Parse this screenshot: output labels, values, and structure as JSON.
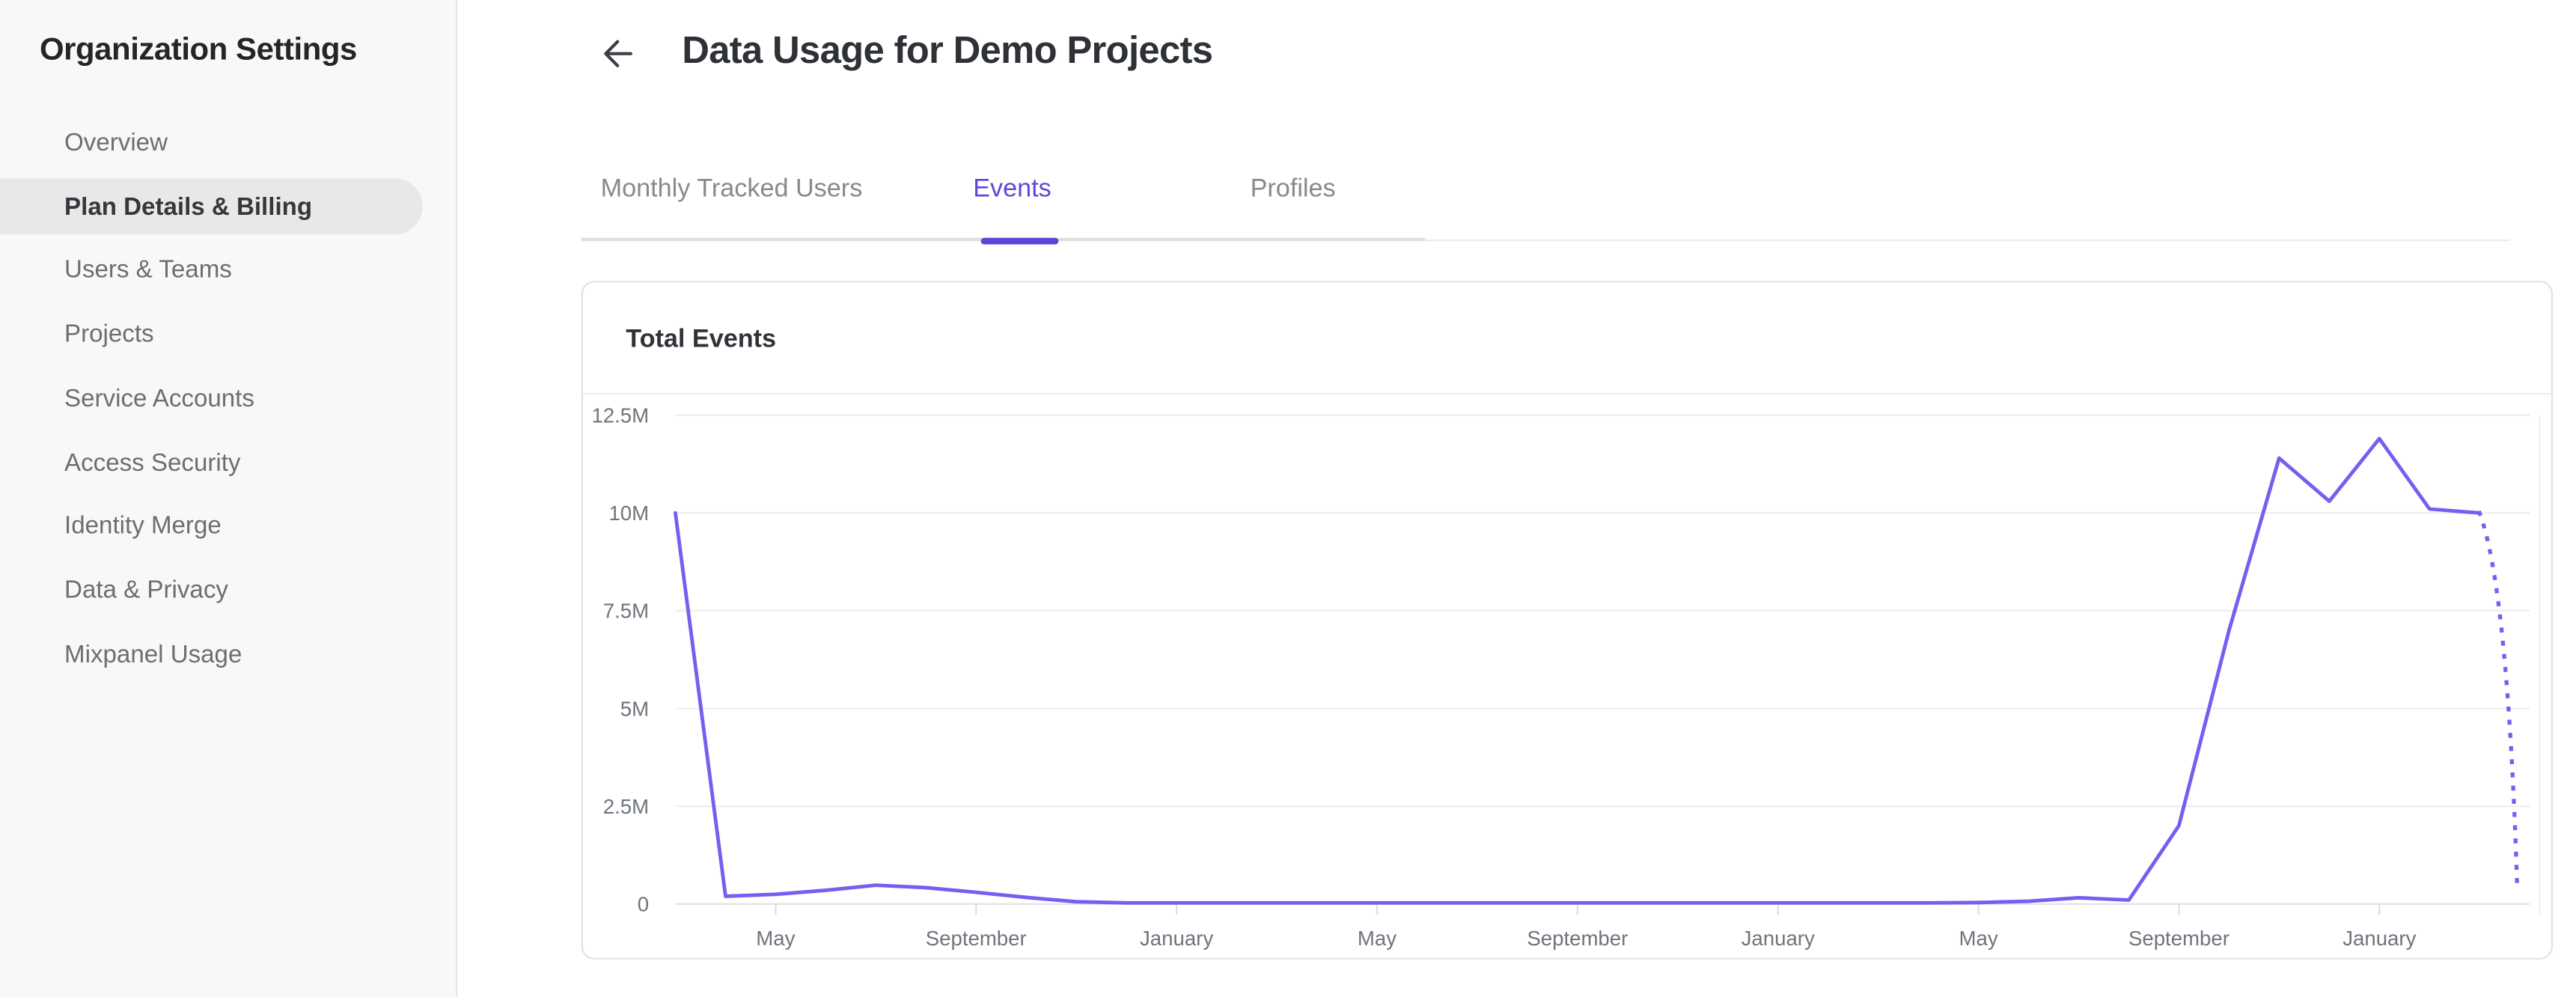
{
  "sidebar": {
    "title": "Organization Settings",
    "items": [
      {
        "label": "Overview",
        "selected": false
      },
      {
        "label": "Plan Details & Billing",
        "selected": true
      },
      {
        "label": "Users & Teams",
        "selected": false
      },
      {
        "label": "Projects",
        "selected": false
      },
      {
        "label": "Service Accounts",
        "selected": false
      },
      {
        "label": "Access Security",
        "selected": false
      },
      {
        "label": "Identity Merge",
        "selected": false
      },
      {
        "label": "Data & Privacy",
        "selected": false
      },
      {
        "label": "Mixpanel Usage",
        "selected": false
      }
    ]
  },
  "header": {
    "title": "Data Usage for Demo Projects",
    "back_icon": "back-arrow-icon"
  },
  "tabs": [
    {
      "label": "Monthly Tracked Users",
      "active": false
    },
    {
      "label": "Events",
      "active": true
    },
    {
      "label": "Profiles",
      "active": false
    }
  ],
  "card": {
    "title": "Total Events"
  },
  "colors": {
    "accent_purple": "#5847d6",
    "line_purple": "#7a5cf0",
    "sidebar_bg": "#f8f8f8",
    "selected_item_bg": "#e8e8e8",
    "gridline": "#ededed",
    "axis_label": "#6f747c"
  },
  "chart_data": {
    "type": "line",
    "title": "Total Events",
    "series_name": "Total Events",
    "ylim_millions": [
      0,
      12.5
    ],
    "y_tick_labels": [
      "0",
      "2.5M",
      "5M",
      "7.5M",
      "10M",
      "12.5M"
    ],
    "x_tick_labels": [
      "May",
      "September",
      "January",
      "May",
      "September",
      "January",
      "May",
      "September",
      "January"
    ],
    "x_tick_indices": [
      2,
      6,
      10,
      14,
      18,
      22,
      26,
      30,
      34
    ],
    "granularity": "monthly",
    "values_millions": [
      10,
      0.2,
      0.25,
      0.35,
      0.48,
      0.42,
      0.3,
      0.17,
      0.06,
      0.03,
      0.03,
      0.03,
      0.03,
      0.03,
      0.03,
      0.03,
      0.03,
      0.03,
      0.03,
      0.03,
      0.03,
      0.03,
      0.03,
      0.03,
      0.03,
      0.03,
      0.04,
      0.07,
      0.16,
      0.1,
      2.0,
      7.0,
      11.4,
      10.3,
      11.9,
      10.1,
      10.0,
      0.4
    ],
    "projection_start_index": 36,
    "projection_end_fraction": 0.75,
    "projection_style": "dotted",
    "line_color": "#7a5cf0",
    "legend": "none",
    "grid": "horizontal"
  }
}
